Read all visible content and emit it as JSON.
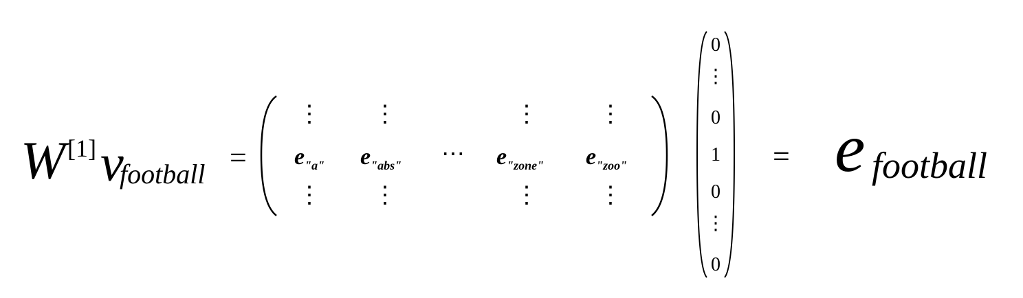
{
  "equation": {
    "lhs": {
      "matrix_symbol": "W",
      "superscript": "[1]",
      "vector_symbol": "v",
      "vector_subscript": "football"
    },
    "equals": "=",
    "matrix": {
      "vdots": "⋮",
      "hdots": "⋯",
      "columns": [
        {
          "symbol": "e",
          "subscript": "\"a\""
        },
        {
          "symbol": "e",
          "subscript": "\"abs\""
        },
        {
          "symbol": "e",
          "subscript": "\"zone\""
        },
        {
          "symbol": "e",
          "subscript": "\"zoo\""
        }
      ]
    },
    "one_hot_vector": [
      "0",
      "⋮",
      "0",
      "1",
      "0",
      "⋮",
      "0"
    ],
    "rhs": {
      "symbol": "e",
      "subscript": "football"
    }
  }
}
